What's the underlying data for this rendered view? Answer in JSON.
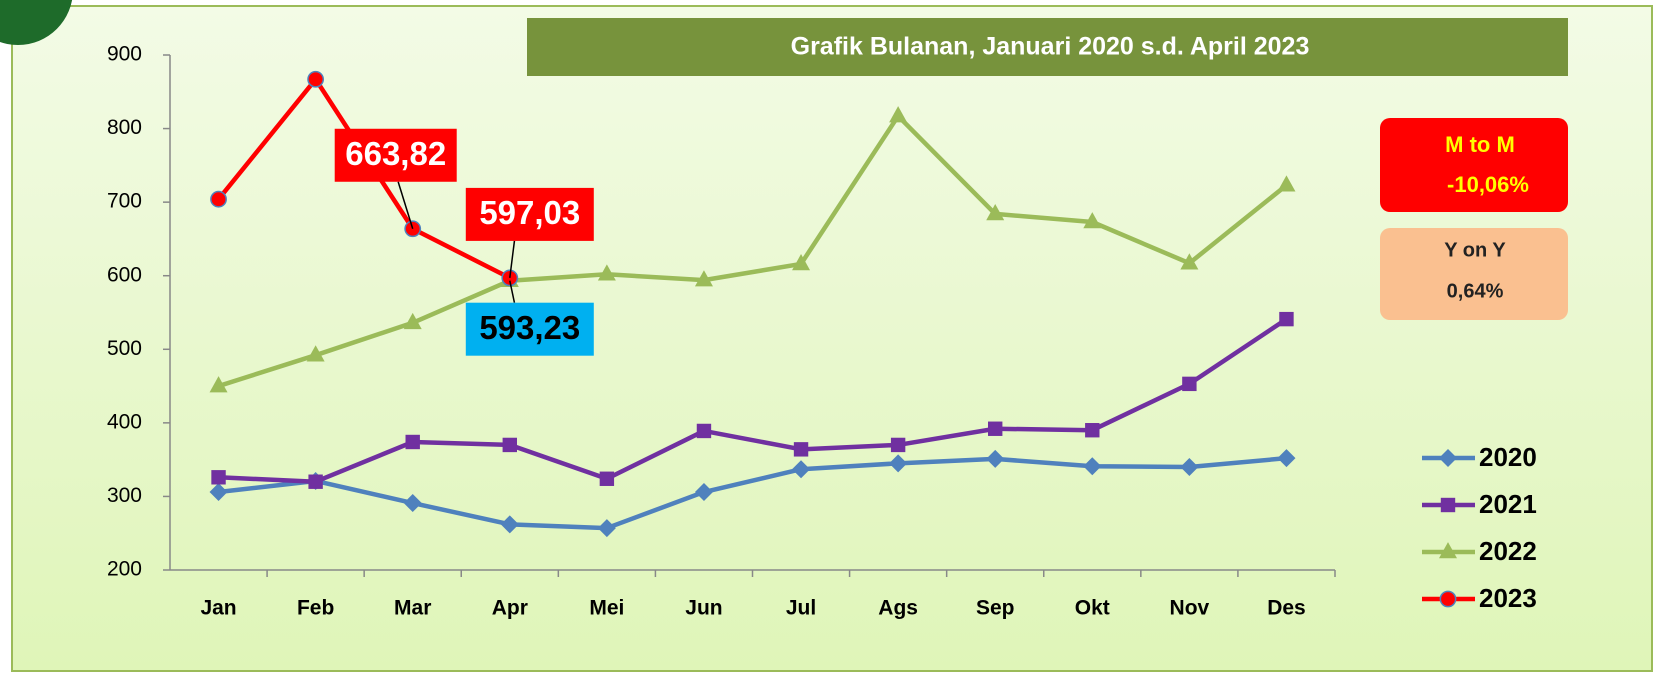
{
  "chart_data": {
    "type": "line",
    "title": "Grafik Bulanan, Januari 2020 s.d. April 2023",
    "categories": [
      "Jan",
      "Feb",
      "Mar",
      "Apr",
      "Mei",
      "Jun",
      "Jul",
      "Ags",
      "Sep",
      "Okt",
      "Nov",
      "Des"
    ],
    "ylim": [
      200,
      900
    ],
    "yticks": [
      200,
      300,
      400,
      500,
      600,
      700,
      800,
      900
    ],
    "series": [
      {
        "name": "2020",
        "color": "#4f81bd",
        "marker": "diamond",
        "values": [
          306,
          321,
          291,
          262,
          257,
          306,
          337,
          345,
          351,
          341,
          340,
          352
        ]
      },
      {
        "name": "2021",
        "color": "#7030a0",
        "marker": "square",
        "values": [
          326,
          320,
          374,
          370,
          324,
          389,
          364,
          370,
          392,
          390,
          453,
          541
        ]
      },
      {
        "name": "2022",
        "color": "#9bbb59",
        "marker": "triangle",
        "values": [
          450,
          492,
          536,
          593.23,
          602,
          594,
          616,
          817,
          684,
          673,
          617,
          723
        ],
        "value_labels": [
          null,
          null,
          null,
          "593,23",
          null,
          null,
          null,
          null,
          null,
          null,
          null,
          null
        ]
      },
      {
        "name": "2023",
        "color": "#ff0000",
        "marker": "circle",
        "values": [
          704,
          867,
          663.82,
          597.03,
          null,
          null,
          null,
          null,
          null,
          null,
          null,
          null
        ],
        "value_labels": [
          null,
          null,
          "663,82",
          "597,03",
          null,
          null,
          null,
          null,
          null,
          null,
          null,
          null
        ]
      }
    ],
    "annotations": {
      "mtm_label": "M to M",
      "mtm_value": "-10,06%",
      "yoy_label": "Y on Y",
      "yoy_value": "0,64%"
    }
  }
}
